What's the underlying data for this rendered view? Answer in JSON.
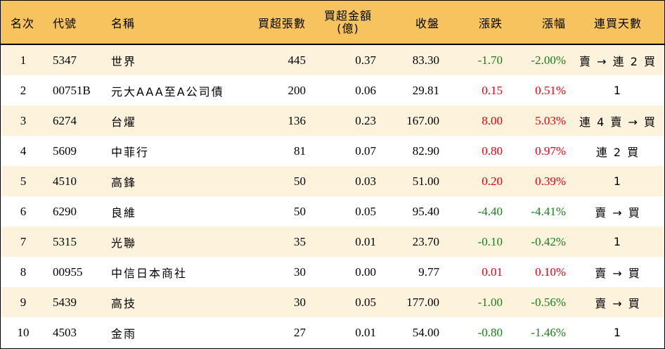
{
  "headers": {
    "rank": "名次",
    "code": "代號",
    "name": "名稱",
    "net_buy_lots": "買超張數",
    "net_buy_amount_l1": "買超金額",
    "net_buy_amount_l2": "(億)",
    "close": "收盤",
    "change": "漲跌",
    "pct": "漲幅",
    "streak": "連買天數"
  },
  "colors": {
    "header_bg": "#f7c35e",
    "odd_row_bg": "#fdf2dc",
    "up": "#e60012",
    "down": "#1a7f1a"
  },
  "rows": [
    {
      "rank": "1",
      "code": "5347",
      "name": "世界",
      "lots": "445",
      "amount": "0.37",
      "close": "83.30",
      "change": "-1.70",
      "pct": "-2.00%",
      "streak": "賣 → 連 2 買",
      "dir": "down"
    },
    {
      "rank": "2",
      "code": "00751B",
      "name": "元大AAA至A公司債",
      "lots": "200",
      "amount": "0.06",
      "close": "29.81",
      "change": "0.15",
      "pct": "0.51%",
      "streak": "1",
      "dir": "up"
    },
    {
      "rank": "3",
      "code": "6274",
      "name": "台燿",
      "lots": "136",
      "amount": "0.23",
      "close": "167.00",
      "change": "8.00",
      "pct": "5.03%",
      "streak": "連 4 賣 → 買",
      "dir": "up"
    },
    {
      "rank": "4",
      "code": "5609",
      "name": "中菲行",
      "lots": "81",
      "amount": "0.07",
      "close": "82.90",
      "change": "0.80",
      "pct": "0.97%",
      "streak": "連 2 買",
      "dir": "up"
    },
    {
      "rank": "5",
      "code": "4510",
      "name": "高鋒",
      "lots": "50",
      "amount": "0.03",
      "close": "51.00",
      "change": "0.20",
      "pct": "0.39%",
      "streak": "1",
      "dir": "up"
    },
    {
      "rank": "6",
      "code": "6290",
      "name": "良維",
      "lots": "50",
      "amount": "0.05",
      "close": "95.40",
      "change": "-4.40",
      "pct": "-4.41%",
      "streak": "賣 → 買",
      "dir": "down"
    },
    {
      "rank": "7",
      "code": "5315",
      "name": "光聯",
      "lots": "35",
      "amount": "0.01",
      "close": "23.70",
      "change": "-0.10",
      "pct": "-0.42%",
      "streak": "1",
      "dir": "down"
    },
    {
      "rank": "8",
      "code": "00955",
      "name": "中信日本商社",
      "lots": "30",
      "amount": "0.00",
      "close": "9.77",
      "change": "0.01",
      "pct": "0.10%",
      "streak": "賣 → 買",
      "dir": "up"
    },
    {
      "rank": "9",
      "code": "5439",
      "name": "高技",
      "lots": "30",
      "amount": "0.05",
      "close": "177.00",
      "change": "-1.00",
      "pct": "-0.56%",
      "streak": "賣 → 買",
      "dir": "down"
    },
    {
      "rank": "10",
      "code": "4503",
      "name": "金雨",
      "lots": "27",
      "amount": "0.01",
      "close": "54.00",
      "change": "-0.80",
      "pct": "-1.46%",
      "streak": "1",
      "dir": "down"
    }
  ]
}
